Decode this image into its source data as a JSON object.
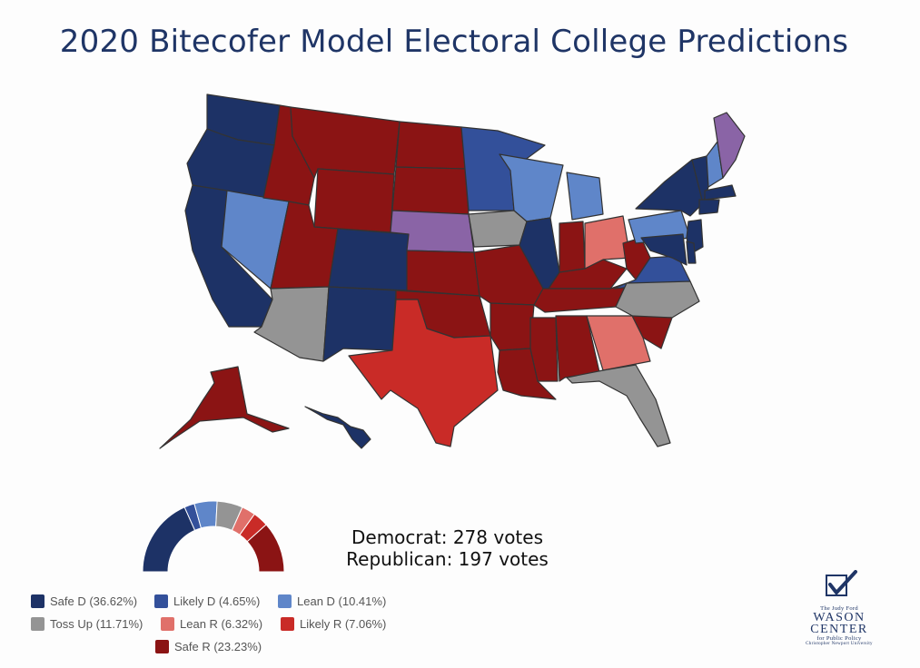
{
  "title": "2020 Bitecofer Model Electoral College Predictions",
  "colors": {
    "safe_d": "#1d3266",
    "likely_d": "#33509a",
    "lean_d": "#5f86c9",
    "toss_up": "#949494",
    "lean_r": "#e0706a",
    "likely_r": "#c92b27",
    "safe_r": "#8b1414",
    "split": "#8a64a6"
  },
  "totals": {
    "democrat": "Democrat: 278 votes",
    "republican": "Republican: 197 votes"
  },
  "legend": [
    {
      "key": "safe_d",
      "label": "Safe D (36.62%)",
      "value": 36.62
    },
    {
      "key": "likely_d",
      "label": "Likely D (4.65%)",
      "value": 4.65
    },
    {
      "key": "lean_d",
      "label": "Lean D (10.41%)",
      "value": 10.41
    },
    {
      "key": "toss_up",
      "label": "Toss Up (11.71%)",
      "value": 11.71
    },
    {
      "key": "lean_r",
      "label": "Lean R (6.32%)",
      "value": 6.32
    },
    {
      "key": "likely_r",
      "label": "Likely R (7.06%)",
      "value": 7.06
    },
    {
      "key": "safe_r",
      "label": "Safe R (23.23%)",
      "value": 23.23
    }
  ],
  "logo": {
    "line1": "The Judy Ford",
    "line2": "WASON",
    "line3": "CENTER",
    "line4": "for Public Policy",
    "line5": "Christopher Newport University"
  },
  "states": {
    "WA": "safe_d",
    "OR": "safe_d",
    "CA": "safe_d",
    "NV": "lean_d",
    "ID": "safe_r",
    "MT": "safe_r",
    "WY": "safe_r",
    "UT": "safe_r",
    "AZ": "toss_up",
    "CO": "safe_d",
    "NM": "safe_d",
    "ND": "safe_r",
    "SD": "safe_r",
    "NE": "split",
    "KS": "safe_r",
    "OK": "safe_r",
    "TX": "likely_r",
    "MN": "likely_d",
    "IA": "toss_up",
    "MO": "safe_r",
    "AR": "safe_r",
    "LA": "safe_r",
    "WI": "lean_d",
    "IL": "safe_d",
    "MS": "safe_r",
    "MI": "lean_d",
    "IN": "safe_r",
    "KY": "safe_r",
    "TN": "safe_r",
    "AL": "safe_r",
    "OH": "lean_r",
    "WV": "safe_r",
    "VA": "likely_d",
    "NC": "toss_up",
    "SC": "safe_r",
    "GA": "lean_r",
    "FL": "toss_up",
    "PA": "lean_d",
    "NY": "safe_d",
    "VT": "safe_d",
    "NH": "lean_d",
    "ME": "split",
    "MA": "safe_d",
    "CT": "safe_d",
    "NJ": "safe_d",
    "DE": "safe_d",
    "MD": "safe_d",
    "AK": "safe_r",
    "HI": "safe_d"
  }
}
